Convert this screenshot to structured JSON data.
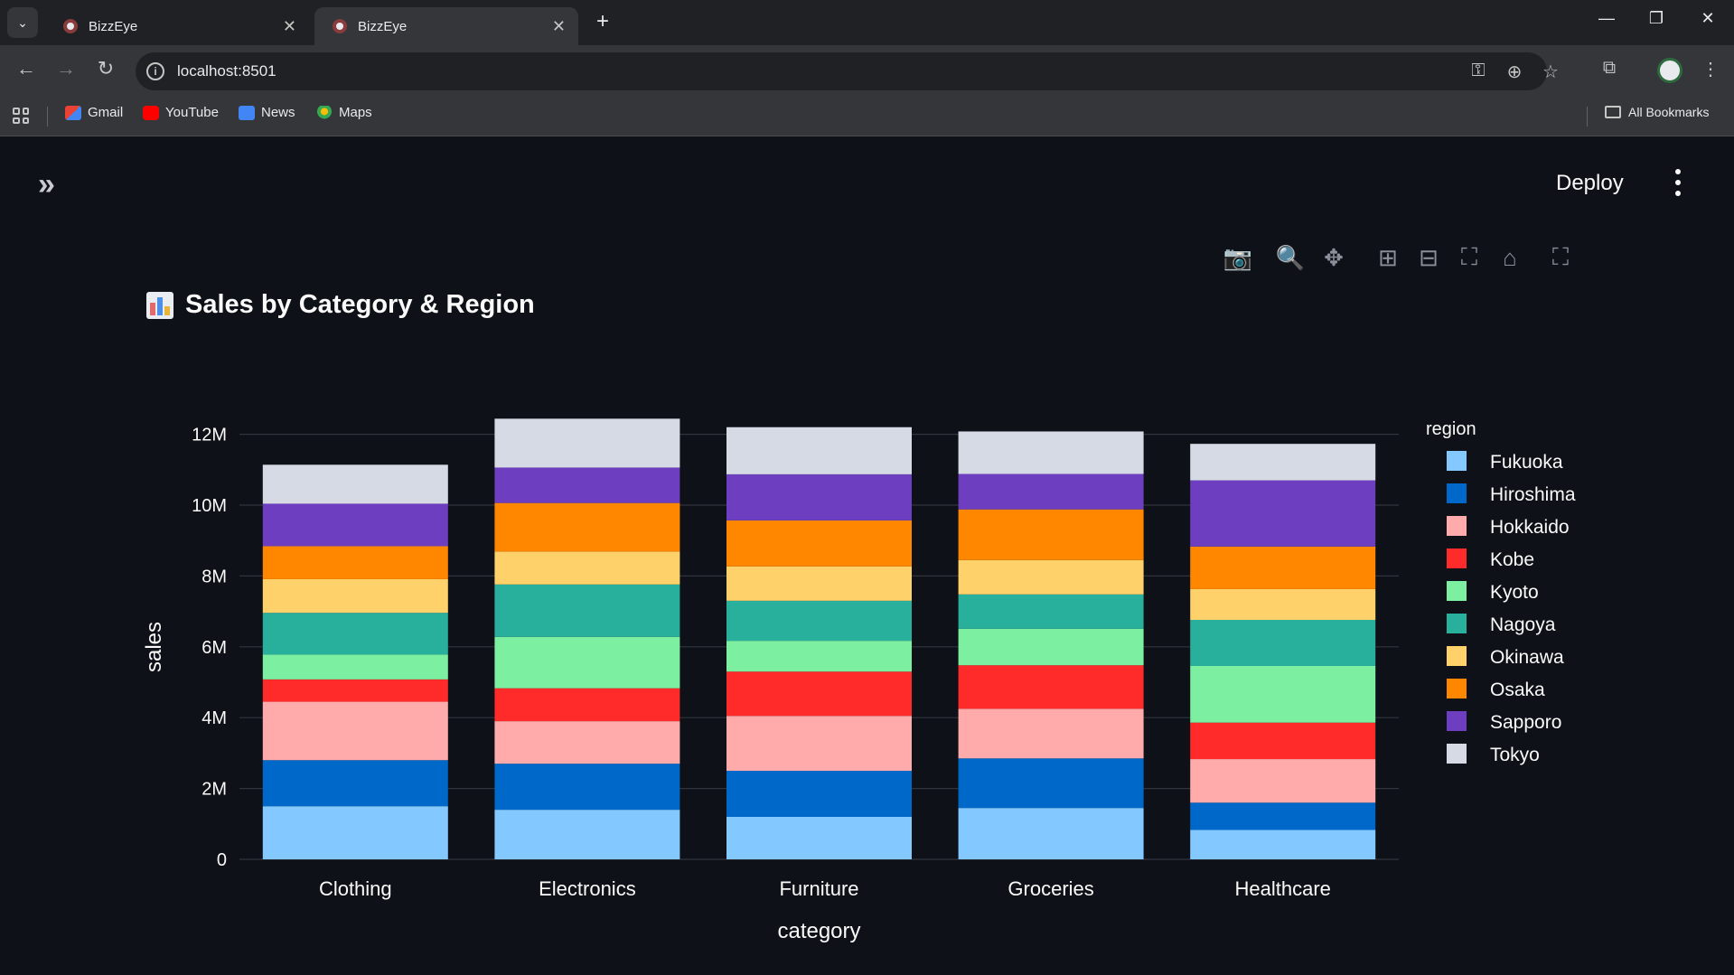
{
  "browser": {
    "tabs": [
      {
        "title": "BizzEye",
        "active": false
      },
      {
        "title": "BizzEye",
        "active": true
      }
    ],
    "url": "localhost:8501",
    "bookmarks": [
      "Gmail",
      "YouTube",
      "News",
      "Maps"
    ],
    "all_bookmarks": "All Bookmarks"
  },
  "app": {
    "deploy_label": "Deploy",
    "chart_heading": "Sales by Category & Region"
  },
  "chart_data": {
    "type": "bar",
    "barmode": "stack",
    "xlabel": "category",
    "ylabel": "sales",
    "legend_title": "region",
    "legend_placement": "right",
    "grid": true,
    "ylim": [
      0,
      12500000
    ],
    "y_ticks": [
      {
        "value": 0,
        "label": "0"
      },
      {
        "value": 2000000,
        "label": "2M"
      },
      {
        "value": 4000000,
        "label": "4M"
      },
      {
        "value": 6000000,
        "label": "6M"
      },
      {
        "value": 8000000,
        "label": "8M"
      },
      {
        "value": 10000000,
        "label": "10M"
      },
      {
        "value": 12000000,
        "label": "12M"
      }
    ],
    "categories": [
      "Clothing",
      "Electronics",
      "Furniture",
      "Groceries",
      "Healthcare"
    ],
    "series": [
      {
        "name": "Fukuoka",
        "color": "#83c9ff",
        "values": [
          1500000,
          1400000,
          1200000,
          1450000,
          830000
        ]
      },
      {
        "name": "Hiroshima",
        "color": "#0068c9",
        "values": [
          1300000,
          1300000,
          1300000,
          1400000,
          770000
        ]
      },
      {
        "name": "Hokkaido",
        "color": "#ffabab",
        "values": [
          1650000,
          1200000,
          1550000,
          1400000,
          1230000
        ]
      },
      {
        "name": "Kobe",
        "color": "#ff2b2b",
        "values": [
          630000,
          930000,
          1250000,
          1230000,
          1030000
        ]
      },
      {
        "name": "Kyoto",
        "color": "#7defa1",
        "values": [
          700000,
          1450000,
          870000,
          1030000,
          1600000
        ]
      },
      {
        "name": "Nagoya",
        "color": "#29b09d",
        "values": [
          1180000,
          1480000,
          1130000,
          970000,
          1300000
        ]
      },
      {
        "name": "Okinawa",
        "color": "#ffd16a",
        "values": [
          950000,
          930000,
          970000,
          970000,
          870000
        ]
      },
      {
        "name": "Osaka",
        "color": "#ff8700",
        "values": [
          930000,
          1370000,
          1300000,
          1430000,
          1200000
        ]
      },
      {
        "name": "Sapporo",
        "color": "#6d3fc0",
        "values": [
          1200000,
          1000000,
          1300000,
          1000000,
          1870000
        ]
      },
      {
        "name": "Tokyo",
        "color": "#d5dae5",
        "values": [
          1100000,
          1380000,
          1330000,
          1200000,
          1030000
        ]
      }
    ]
  }
}
